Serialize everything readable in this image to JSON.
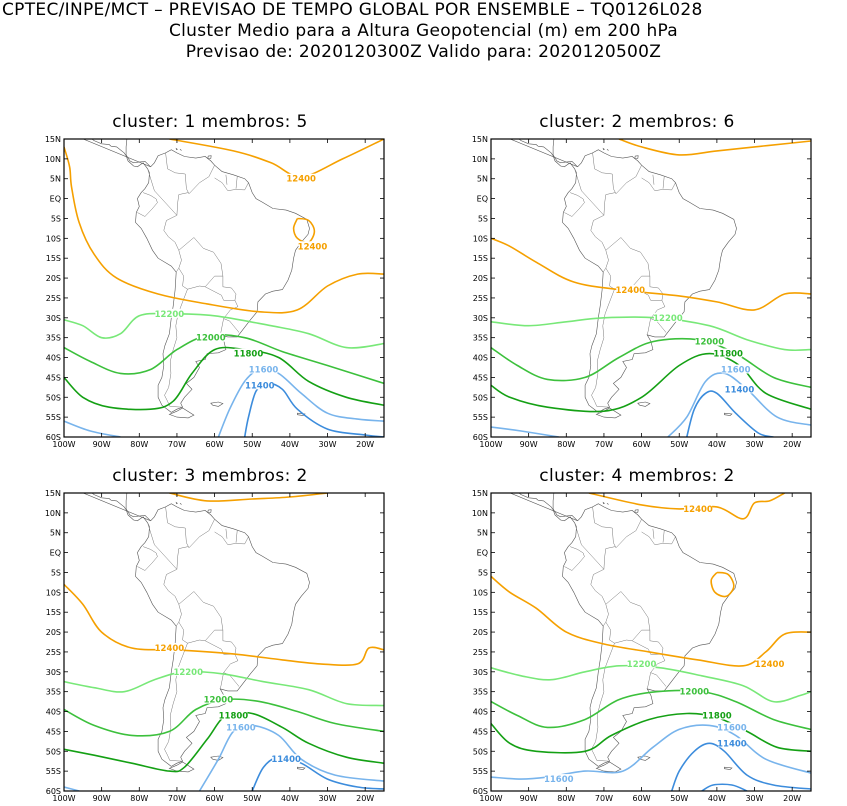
{
  "header": {
    "line1": "CPTEC/INPE/MCT – PREVISAO DE TEMPO GLOBAL POR ENSEMBLE – TQ0126L028",
    "line2": "Cluster Medio para a Altura Geopotencial (m) em 200 hPa",
    "line3": "Previsao de: 2020120300Z    Valido para: 2020120500Z"
  },
  "axes": {
    "lat_labels": [
      "15N",
      "10N",
      "5N",
      "EQ",
      "5S",
      "10S",
      "15S",
      "20S",
      "25S",
      "30S",
      "35S",
      "40S",
      "45S",
      "50S",
      "55S",
      "60S"
    ],
    "lon_labels": [
      "100W",
      "90W",
      "80W",
      "70W",
      "60W",
      "50W",
      "40W",
      "30W",
      "20W"
    ]
  },
  "contour_colors": {
    "12400": "#f5a000",
    "12200": "#78e878",
    "12000": "#3cc03c",
    "11800": "#14a014",
    "11600": "#78b4ec",
    "11400": "#3c8cdc"
  },
  "panels": [
    {
      "title": "cluster: 1   membros: 5",
      "labels": [
        {
          "text": "12400",
          "lon": -37,
          "lat": 5
        },
        {
          "text": "12400",
          "lon": -34,
          "lat": -12
        },
        {
          "text": "12200",
          "lon": -72,
          "lat": -29
        },
        {
          "text": "12000",
          "lon": -61,
          "lat": -35
        },
        {
          "text": "11800",
          "lon": -51,
          "lat": -39
        },
        {
          "text": "11600",
          "lon": -47,
          "lat": -43
        },
        {
          "text": "11400",
          "lon": -48,
          "lat": -47
        }
      ]
    },
    {
      "title": "cluster: 2   membros: 6",
      "labels": [
        {
          "text": "12400",
          "lon": -63,
          "lat": -23
        },
        {
          "text": "12200",
          "lon": -53,
          "lat": -30
        },
        {
          "text": "12000",
          "lon": -42,
          "lat": -36
        },
        {
          "text": "11800",
          "lon": -37,
          "lat": -39
        },
        {
          "text": "11600",
          "lon": -35,
          "lat": -43
        },
        {
          "text": "11400",
          "lon": -34,
          "lat": -48
        }
      ]
    },
    {
      "title": "cluster: 3   membros: 2",
      "labels": [
        {
          "text": "12400",
          "lon": -72,
          "lat": -24
        },
        {
          "text": "12200",
          "lon": -67,
          "lat": -30
        },
        {
          "text": "12000",
          "lon": -59,
          "lat": -37
        },
        {
          "text": "11800",
          "lon": -55,
          "lat": -41
        },
        {
          "text": "11600",
          "lon": -53,
          "lat": -44
        },
        {
          "text": "11400",
          "lon": -41,
          "lat": -52
        }
      ]
    },
    {
      "title": "cluster: 4   membros: 2",
      "labels": [
        {
          "text": "12400",
          "lon": -45,
          "lat": 11
        },
        {
          "text": "12400",
          "lon": -26,
          "lat": -28
        },
        {
          "text": "12200",
          "lon": -60,
          "lat": -28
        },
        {
          "text": "12000",
          "lon": -46,
          "lat": -35
        },
        {
          "text": "11800",
          "lon": -40,
          "lat": -41
        },
        {
          "text": "11600",
          "lon": -36,
          "lat": -44
        },
        {
          "text": "11400",
          "lon": -36,
          "lat": -48
        },
        {
          "text": "11600",
          "lon": -82,
          "lat": -57
        }
      ]
    }
  ]
}
